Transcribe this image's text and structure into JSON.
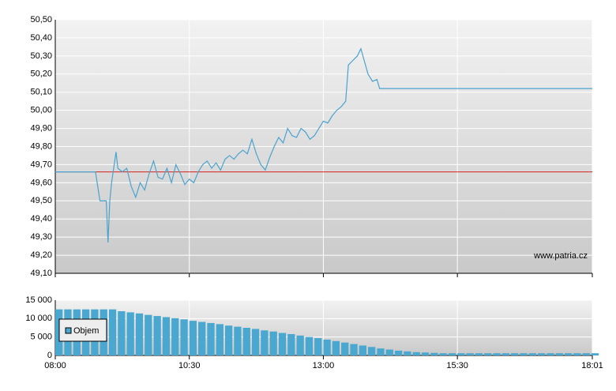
{
  "chart_data": [
    {
      "type": "line",
      "watermark": "www.patria.cz",
      "x": [
        480,
        525,
        530,
        537,
        539,
        541,
        543,
        548,
        550,
        555,
        560,
        565,
        570,
        575,
        580,
        585,
        590,
        595,
        600,
        605,
        610,
        615,
        620,
        625,
        630,
        635,
        640,
        645,
        650,
        655,
        660,
        665,
        670,
        675,
        680,
        685,
        690,
        695,
        700,
        705,
        710,
        715,
        720,
        725,
        730,
        735,
        740,
        745,
        750,
        755,
        760,
        765,
        770,
        775,
        780,
        785,
        790,
        795,
        800,
        805,
        808,
        812,
        818,
        822,
        826,
        830,
        835,
        840,
        843,
        1081
      ],
      "series": [
        {
          "color": "#4aa3cf",
          "values": [
            49.66,
            49.66,
            49.5,
            49.5,
            49.27,
            49.5,
            49.6,
            49.77,
            49.68,
            49.66,
            49.68,
            49.58,
            49.52,
            49.6,
            49.56,
            49.65,
            49.72,
            49.63,
            49.62,
            49.68,
            49.6,
            49.7,
            49.65,
            49.59,
            49.62,
            49.6,
            49.66,
            49.7,
            49.72,
            49.68,
            49.71,
            49.67,
            49.73,
            49.75,
            49.73,
            49.76,
            49.78,
            49.76,
            49.84,
            49.76,
            49.7,
            49.67,
            49.74,
            49.8,
            49.85,
            49.82,
            49.9,
            49.86,
            49.85,
            49.9,
            49.88,
            49.84,
            49.86,
            49.9,
            49.94,
            49.93,
            49.97,
            50.0,
            50.02,
            50.05,
            50.25,
            50.27,
            50.3,
            50.34,
            50.27,
            50.2,
            50.16,
            50.17,
            50.12,
            50.12
          ]
        }
      ],
      "reference": {
        "value": 49.66,
        "color": "#d62020"
      },
      "xlim": [
        480,
        1081
      ],
      "ylim": [
        49.1,
        50.5
      ],
      "yticks": [
        {
          "value": 49.1,
          "label": "49,10"
        },
        {
          "value": 49.2,
          "label": "49,20"
        },
        {
          "value": 49.3,
          "label": "49,30"
        },
        {
          "value": 49.4,
          "label": "49,40"
        },
        {
          "value": 49.5,
          "label": "49,50"
        },
        {
          "value": 49.6,
          "label": "49,60"
        },
        {
          "value": 49.7,
          "label": "49,70"
        },
        {
          "value": 49.8,
          "label": "49,80"
        },
        {
          "value": 49.9,
          "label": "49,90"
        },
        {
          "value": 50.0,
          "label": "50,00"
        },
        {
          "value": 50.1,
          "label": "50,10"
        },
        {
          "value": 50.2,
          "label": "50,20"
        },
        {
          "value": 50.3,
          "label": "50,30"
        },
        {
          "value": 50.4,
          "label": "50,40"
        },
        {
          "value": 50.5,
          "label": "50,50"
        }
      ],
      "grid": true
    },
    {
      "type": "bar",
      "x": [
        480,
        490,
        500,
        510,
        520,
        530,
        540,
        550,
        560,
        570,
        580,
        590,
        600,
        610,
        620,
        630,
        640,
        650,
        660,
        670,
        680,
        690,
        700,
        710,
        720,
        730,
        740,
        750,
        760,
        770,
        780,
        790,
        800,
        810,
        820,
        830,
        840,
        850,
        860,
        870,
        880,
        890,
        900,
        910,
        920,
        930,
        940,
        950,
        960,
        970,
        980,
        990,
        1000,
        1010,
        1020,
        1030,
        1040,
        1050,
        1060,
        1070,
        1080
      ],
      "series": [
        {
          "name": "Objem",
          "color": "#4aa8d0",
          "values": [
            12500,
            12500,
            12500,
            12500,
            12500,
            12500,
            12500,
            12000,
            11700,
            11400,
            11000,
            10700,
            10400,
            10100,
            9800,
            9400,
            9100,
            8800,
            8500,
            8100,
            7800,
            7500,
            7200,
            6800,
            6500,
            6100,
            5800,
            5400,
            5000,
            4700,
            4300,
            3900,
            3500,
            3100,
            2700,
            2300,
            1900,
            1600,
            1300,
            1100,
            900,
            800,
            700,
            600,
            600,
            600,
            600,
            600,
            600,
            600,
            600,
            600,
            600,
            600,
            600,
            600,
            600,
            600,
            600,
            600,
            600
          ]
        }
      ],
      "xlim": [
        480,
        1081
      ],
      "ylim": [
        0,
        15000
      ],
      "xticks": [
        {
          "value": 480,
          "label": "08:00"
        },
        {
          "value": 630,
          "label": "10:30"
        },
        {
          "value": 780,
          "label": "13:00"
        },
        {
          "value": 930,
          "label": "15:30"
        },
        {
          "value": 1081,
          "label": "18:01"
        }
      ],
      "yticks": [
        0,
        {
          "value": 5000,
          "label": "5 000"
        },
        {
          "value": 10000,
          "label": "10 000"
        },
        {
          "value": 15000,
          "label": "15 000"
        }
      ],
      "grid": true,
      "legend": "upper-left"
    }
  ]
}
